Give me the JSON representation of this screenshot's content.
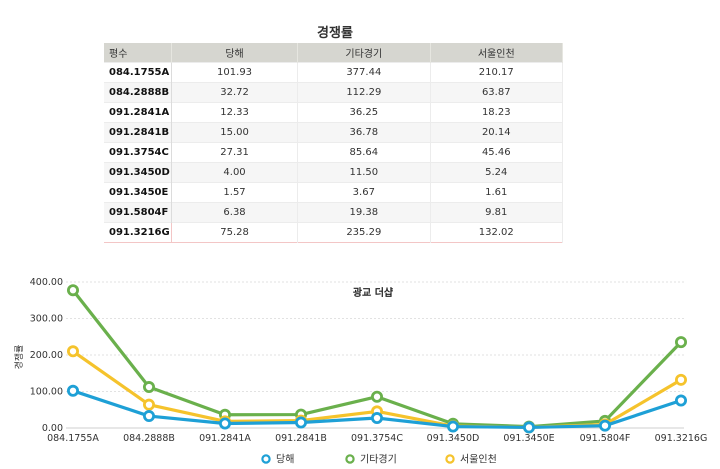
{
  "table": {
    "title": "경쟁률",
    "headers": [
      "평수",
      "당해",
      "기타경기",
      "서울인천"
    ],
    "rows": [
      [
        "084.1755A",
        "101.93",
        "377.44",
        "210.17"
      ],
      [
        "084.2888B",
        "32.72",
        "112.29",
        "63.87"
      ],
      [
        "091.2841A",
        "12.33",
        "36.25",
        "18.23"
      ],
      [
        "091.2841B",
        "15.00",
        "36.78",
        "20.14"
      ],
      [
        "091.3754C",
        "27.31",
        "85.64",
        "45.46"
      ],
      [
        "091.3450D",
        "4.00",
        "11.50",
        "5.24"
      ],
      [
        "091.3450E",
        "1.57",
        "3.67",
        "1.61"
      ],
      [
        "091.5804F",
        "6.38",
        "19.38",
        "9.81"
      ],
      [
        "091.3216G",
        "75.28",
        "235.29",
        "132.02"
      ]
    ]
  },
  "chart_data": {
    "type": "line",
    "title": "광교 더샵",
    "ylabel": "경쟁률",
    "xlabel": "",
    "ylim": [
      0,
      400
    ],
    "yticks": [
      "0.00",
      "100.00",
      "200.00",
      "300.00",
      "400.00"
    ],
    "grid": true,
    "legend": "bottom",
    "categories": [
      "084.1755A",
      "084.2888B",
      "091.2841A",
      "091.2841B",
      "091.3754C",
      "091.3450D",
      "091.3450E",
      "091.5804F",
      "091.3216G"
    ],
    "series": [
      {
        "name": "당해",
        "color": "#1ea0d6",
        "values": [
          101.93,
          32.72,
          12.33,
          15.0,
          27.31,
          4.0,
          1.57,
          6.38,
          75.28
        ]
      },
      {
        "name": "기타경기",
        "color": "#6ab04c",
        "values": [
          377.44,
          112.29,
          36.25,
          36.78,
          85.64,
          11.5,
          3.67,
          19.38,
          235.29
        ]
      },
      {
        "name": "서울인천",
        "color": "#f5c32c",
        "values": [
          210.17,
          63.87,
          18.23,
          20.14,
          45.46,
          5.24,
          1.61,
          9.81,
          132.02
        ]
      }
    ]
  }
}
